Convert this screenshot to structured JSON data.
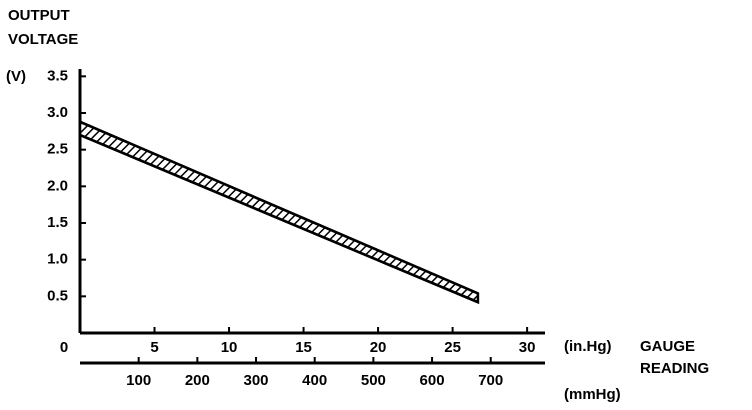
{
  "chart_data": {
    "type": "band",
    "title_lines": [
      "OUTPUT",
      "VOLTAGE"
    ],
    "y_unit": "(V)",
    "x_unit": "(in.Hg)",
    "x_label_lines": [
      "GAUGE",
      "READING"
    ],
    "x2_unit": "(mmHg)",
    "x": [
      0,
      26.7
    ],
    "upper": [
      2.88,
      0.54
    ],
    "lower": [
      2.7,
      0.42
    ],
    "color": "#000000",
    "ylim": [
      0,
      3.6
    ],
    "yticks": [
      0.5,
      {
        "value": 1.0,
        "label": "1.0"
      },
      1.5,
      {
        "value": 2.0,
        "label": "2.0"
      },
      2.5,
      {
        "value": 3.0,
        "label": "3.0"
      },
      3.5
    ],
    "xlim": [
      0,
      31.2
    ],
    "xticks": [
      0,
      5,
      10,
      15,
      20,
      25,
      30
    ],
    "x2lim": [
      0,
      792.5
    ],
    "x2ticks": [
      100,
      200,
      300,
      400,
      500,
      600,
      700
    ]
  }
}
